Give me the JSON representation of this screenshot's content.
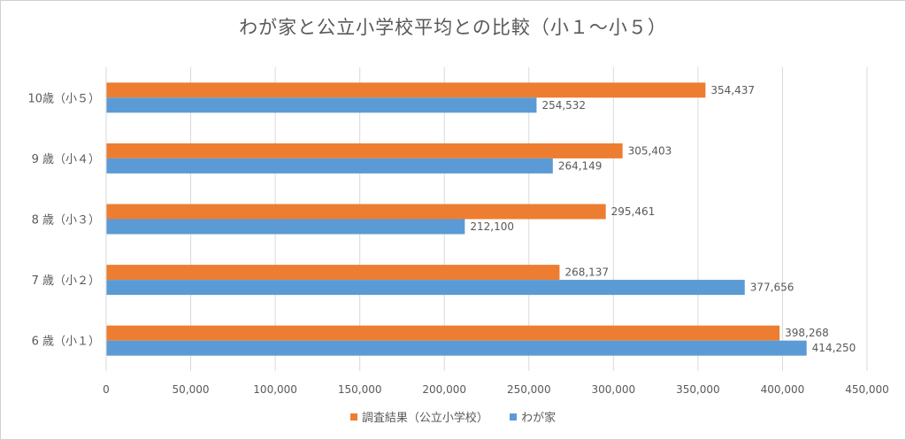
{
  "chart_data": {
    "type": "bar",
    "orientation": "horizontal",
    "title": "わが家と公立小学校平均との比較（小１～小５）",
    "categories": [
      "6 歳（小１）",
      "7 歳（小２）",
      "8 歳（小３）",
      "9 歳（小４）",
      "10歳（小５）"
    ],
    "series": [
      {
        "name": "調査結果（公立小学校）",
        "color": "#ED7D31",
        "values": [
          398268,
          268137,
          295461,
          305403,
          354437
        ],
        "labels": [
          "398,268",
          "268,137",
          "295,461",
          "305,403",
          "354,437"
        ]
      },
      {
        "name": "わが家",
        "color": "#5B9BD5",
        "values": [
          414250,
          377656,
          212100,
          264149,
          254532
        ],
        "labels": [
          "414,250",
          "377,656",
          "212,100",
          "264,149",
          "254,532"
        ]
      }
    ],
    "xlim": [
      0,
      450000
    ],
    "xticks": [
      0,
      50000,
      100000,
      150000,
      200000,
      250000,
      300000,
      350000,
      400000,
      450000
    ],
    "xtick_labels": [
      "0",
      "50,000",
      "100,000",
      "150,000",
      "200,000",
      "250,000",
      "300,000",
      "350,000",
      "400,000",
      "450,000"
    ],
    "xlabel": "",
    "ylabel": "",
    "grid": true,
    "legend_position": "bottom"
  },
  "colors": {
    "gridline": "#d9d9d9",
    "text": "#595959"
  }
}
